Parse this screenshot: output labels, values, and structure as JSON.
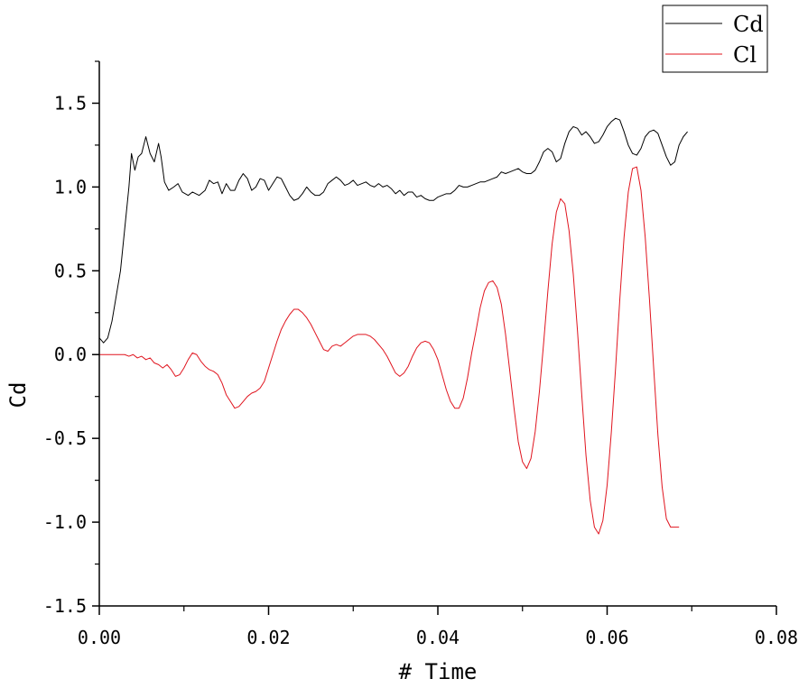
{
  "chart_data": {
    "type": "line",
    "title": "",
    "xlabel": "# Time",
    "ylabel": "Cd",
    "xlim": [
      0.0,
      0.08
    ],
    "ylim": [
      -1.5,
      1.75
    ],
    "xticks": [
      0.0,
      0.02,
      0.04,
      0.06,
      0.08
    ],
    "xtick_labels": [
      "0.00",
      "0.02",
      "0.04",
      "0.06",
      "0.08"
    ],
    "yticks": [
      -1.5,
      -1.0,
      -0.5,
      0.0,
      0.5,
      1.0,
      1.5
    ],
    "ytick_labels": [
      "-1.5",
      "-1.0",
      "-0.5",
      "0.0",
      "0.5",
      "1.0",
      "1.5"
    ],
    "grid": false,
    "legend_position": "top-right",
    "series": [
      {
        "name": "Cd",
        "color": "#000000",
        "points": [
          [
            0.0,
            0.1
          ],
          [
            0.0005,
            0.07
          ],
          [
            0.001,
            0.1
          ],
          [
            0.0015,
            0.2
          ],
          [
            0.002,
            0.35
          ],
          [
            0.0025,
            0.5
          ],
          [
            0.003,
            0.75
          ],
          [
            0.0035,
            1.0
          ],
          [
            0.0038,
            1.2
          ],
          [
            0.0042,
            1.1
          ],
          [
            0.0046,
            1.18
          ],
          [
            0.005,
            1.2
          ],
          [
            0.0055,
            1.3
          ],
          [
            0.006,
            1.2
          ],
          [
            0.0065,
            1.15
          ],
          [
            0.007,
            1.26
          ],
          [
            0.0073,
            1.18
          ],
          [
            0.0077,
            1.03
          ],
          [
            0.0082,
            0.98
          ],
          [
            0.0088,
            1.0
          ],
          [
            0.0093,
            1.02
          ],
          [
            0.0098,
            0.97
          ],
          [
            0.0105,
            0.95
          ],
          [
            0.011,
            0.97
          ],
          [
            0.0118,
            0.95
          ],
          [
            0.0125,
            0.98
          ],
          [
            0.013,
            1.04
          ],
          [
            0.0135,
            1.02
          ],
          [
            0.014,
            1.03
          ],
          [
            0.0145,
            0.96
          ],
          [
            0.015,
            1.02
          ],
          [
            0.0155,
            0.98
          ],
          [
            0.016,
            0.98
          ],
          [
            0.0165,
            1.04
          ],
          [
            0.017,
            1.08
          ],
          [
            0.0175,
            1.05
          ],
          [
            0.018,
            0.98
          ],
          [
            0.0185,
            1.0
          ],
          [
            0.019,
            1.05
          ],
          [
            0.0195,
            1.04
          ],
          [
            0.02,
            0.98
          ],
          [
            0.0205,
            1.02
          ],
          [
            0.021,
            1.06
          ],
          [
            0.0215,
            1.05
          ],
          [
            0.022,
            1.0
          ],
          [
            0.0225,
            0.95
          ],
          [
            0.023,
            0.92
          ],
          [
            0.0235,
            0.93
          ],
          [
            0.024,
            0.96
          ],
          [
            0.0245,
            1.0
          ],
          [
            0.025,
            0.97
          ],
          [
            0.0255,
            0.95
          ],
          [
            0.026,
            0.95
          ],
          [
            0.0265,
            0.97
          ],
          [
            0.027,
            1.02
          ],
          [
            0.0275,
            1.04
          ],
          [
            0.028,
            1.06
          ],
          [
            0.0285,
            1.04
          ],
          [
            0.029,
            1.01
          ],
          [
            0.0295,
            1.02
          ],
          [
            0.03,
            1.04
          ],
          [
            0.0305,
            1.01
          ],
          [
            0.031,
            1.02
          ],
          [
            0.0315,
            1.03
          ],
          [
            0.032,
            1.01
          ],
          [
            0.0325,
            1.0
          ],
          [
            0.033,
            1.02
          ],
          [
            0.0335,
            1.0
          ],
          [
            0.034,
            1.01
          ],
          [
            0.0345,
            0.99
          ],
          [
            0.035,
            0.96
          ],
          [
            0.0355,
            0.98
          ],
          [
            0.036,
            0.95
          ],
          [
            0.0365,
            0.97
          ],
          [
            0.037,
            0.97
          ],
          [
            0.0375,
            0.94
          ],
          [
            0.038,
            0.95
          ],
          [
            0.0385,
            0.93
          ],
          [
            0.039,
            0.92
          ],
          [
            0.0395,
            0.92
          ],
          [
            0.04,
            0.94
          ],
          [
            0.0405,
            0.95
          ],
          [
            0.041,
            0.96
          ],
          [
            0.0415,
            0.96
          ],
          [
            0.042,
            0.98
          ],
          [
            0.0425,
            1.01
          ],
          [
            0.043,
            1.0
          ],
          [
            0.0435,
            1.0
          ],
          [
            0.044,
            1.01
          ],
          [
            0.045,
            1.03
          ],
          [
            0.0455,
            1.03
          ],
          [
            0.046,
            1.04
          ],
          [
            0.0465,
            1.05
          ],
          [
            0.047,
            1.06
          ],
          [
            0.0475,
            1.09
          ],
          [
            0.048,
            1.08
          ],
          [
            0.0485,
            1.09
          ],
          [
            0.049,
            1.1
          ],
          [
            0.0495,
            1.11
          ],
          [
            0.05,
            1.09
          ],
          [
            0.0505,
            1.08
          ],
          [
            0.051,
            1.08
          ],
          [
            0.0515,
            1.1
          ],
          [
            0.052,
            1.15
          ],
          [
            0.0525,
            1.21
          ],
          [
            0.053,
            1.23
          ],
          [
            0.0535,
            1.21
          ],
          [
            0.054,
            1.15
          ],
          [
            0.0545,
            1.17
          ],
          [
            0.055,
            1.26
          ],
          [
            0.0555,
            1.33
          ],
          [
            0.056,
            1.36
          ],
          [
            0.0565,
            1.35
          ],
          [
            0.057,
            1.31
          ],
          [
            0.0575,
            1.33
          ],
          [
            0.058,
            1.3
          ],
          [
            0.0585,
            1.26
          ],
          [
            0.059,
            1.27
          ],
          [
            0.0595,
            1.31
          ],
          [
            0.06,
            1.36
          ],
          [
            0.0605,
            1.39
          ],
          [
            0.061,
            1.41
          ],
          [
            0.0615,
            1.4
          ],
          [
            0.062,
            1.33
          ],
          [
            0.0625,
            1.25
          ],
          [
            0.063,
            1.2
          ],
          [
            0.0635,
            1.19
          ],
          [
            0.064,
            1.23
          ],
          [
            0.0645,
            1.3
          ],
          [
            0.065,
            1.33
          ],
          [
            0.0655,
            1.34
          ],
          [
            0.066,
            1.32
          ],
          [
            0.0665,
            1.25
          ],
          [
            0.067,
            1.18
          ],
          [
            0.0675,
            1.13
          ],
          [
            0.068,
            1.15
          ],
          [
            0.0685,
            1.25
          ],
          [
            0.069,
            1.3
          ],
          [
            0.0695,
            1.33
          ]
        ]
      },
      {
        "name": "Cl",
        "color": "#e0141e",
        "points": [
          [
            0.0,
            0.0
          ],
          [
            0.001,
            0.0
          ],
          [
            0.002,
            0.0
          ],
          [
            0.003,
            0.0
          ],
          [
            0.0035,
            -0.01
          ],
          [
            0.004,
            0.0
          ],
          [
            0.0045,
            -0.02
          ],
          [
            0.005,
            -0.01
          ],
          [
            0.0055,
            -0.03
          ],
          [
            0.006,
            -0.02
          ],
          [
            0.0065,
            -0.05
          ],
          [
            0.007,
            -0.06
          ],
          [
            0.0075,
            -0.08
          ],
          [
            0.008,
            -0.06
          ],
          [
            0.0085,
            -0.09
          ],
          [
            0.009,
            -0.13
          ],
          [
            0.0095,
            -0.12
          ],
          [
            0.01,
            -0.08
          ],
          [
            0.0105,
            -0.03
          ],
          [
            0.011,
            0.01
          ],
          [
            0.0115,
            0.0
          ],
          [
            0.012,
            -0.04
          ],
          [
            0.0125,
            -0.07
          ],
          [
            0.013,
            -0.09
          ],
          [
            0.0135,
            -0.1
          ],
          [
            0.014,
            -0.12
          ],
          [
            0.0145,
            -0.17
          ],
          [
            0.015,
            -0.24
          ],
          [
            0.0155,
            -0.28
          ],
          [
            0.016,
            -0.32
          ],
          [
            0.0165,
            -0.31
          ],
          [
            0.017,
            -0.28
          ],
          [
            0.0175,
            -0.25
          ],
          [
            0.018,
            -0.23
          ],
          [
            0.0185,
            -0.22
          ],
          [
            0.019,
            -0.2
          ],
          [
            0.0195,
            -0.16
          ],
          [
            0.02,
            -0.08
          ],
          [
            0.0205,
            0.0
          ],
          [
            0.021,
            0.08
          ],
          [
            0.0215,
            0.15
          ],
          [
            0.022,
            0.2
          ],
          [
            0.0225,
            0.24
          ],
          [
            0.023,
            0.27
          ],
          [
            0.0235,
            0.27
          ],
          [
            0.024,
            0.25
          ],
          [
            0.0245,
            0.22
          ],
          [
            0.025,
            0.18
          ],
          [
            0.0255,
            0.13
          ],
          [
            0.026,
            0.08
          ],
          [
            0.0265,
            0.03
          ],
          [
            0.027,
            0.02
          ],
          [
            0.0275,
            0.05
          ],
          [
            0.028,
            0.06
          ],
          [
            0.0285,
            0.05
          ],
          [
            0.029,
            0.07
          ],
          [
            0.0295,
            0.09
          ],
          [
            0.03,
            0.11
          ],
          [
            0.0305,
            0.12
          ],
          [
            0.031,
            0.12
          ],
          [
            0.0315,
            0.12
          ],
          [
            0.032,
            0.11
          ],
          [
            0.0325,
            0.09
          ],
          [
            0.033,
            0.06
          ],
          [
            0.0335,
            0.03
          ],
          [
            0.034,
            -0.01
          ],
          [
            0.0345,
            -0.06
          ],
          [
            0.035,
            -0.11
          ],
          [
            0.0355,
            -0.13
          ],
          [
            0.036,
            -0.11
          ],
          [
            0.0365,
            -0.07
          ],
          [
            0.037,
            -0.01
          ],
          [
            0.0375,
            0.04
          ],
          [
            0.038,
            0.07
          ],
          [
            0.0385,
            0.08
          ],
          [
            0.039,
            0.07
          ],
          [
            0.0395,
            0.03
          ],
          [
            0.04,
            -0.03
          ],
          [
            0.0405,
            -0.12
          ],
          [
            0.041,
            -0.21
          ],
          [
            0.0415,
            -0.28
          ],
          [
            0.042,
            -0.32
          ],
          [
            0.0425,
            -0.32
          ],
          [
            0.043,
            -0.26
          ],
          [
            0.0435,
            -0.14
          ],
          [
            0.044,
            0.01
          ],
          [
            0.0445,
            0.14
          ],
          [
            0.045,
            0.28
          ],
          [
            0.0455,
            0.38
          ],
          [
            0.046,
            0.43
          ],
          [
            0.0465,
            0.44
          ],
          [
            0.047,
            0.4
          ],
          [
            0.0475,
            0.3
          ],
          [
            0.048,
            0.12
          ],
          [
            0.0485,
            -0.1
          ],
          [
            0.049,
            -0.32
          ],
          [
            0.0495,
            -0.52
          ],
          [
            0.05,
            -0.64
          ],
          [
            0.0505,
            -0.68
          ],
          [
            0.051,
            -0.62
          ],
          [
            0.0515,
            -0.46
          ],
          [
            0.052,
            -0.22
          ],
          [
            0.0525,
            0.07
          ],
          [
            0.053,
            0.38
          ],
          [
            0.0535,
            0.66
          ],
          [
            0.054,
            0.85
          ],
          [
            0.0545,
            0.93
          ],
          [
            0.055,
            0.9
          ],
          [
            0.0555,
            0.74
          ],
          [
            0.056,
            0.48
          ],
          [
            0.0565,
            0.14
          ],
          [
            0.057,
            -0.24
          ],
          [
            0.0575,
            -0.6
          ],
          [
            0.058,
            -0.87
          ],
          [
            0.0585,
            -1.03
          ],
          [
            0.059,
            -1.07
          ],
          [
            0.0595,
            -0.99
          ],
          [
            0.06,
            -0.78
          ],
          [
            0.0605,
            -0.46
          ],
          [
            0.061,
            -0.08
          ],
          [
            0.0615,
            0.33
          ],
          [
            0.062,
            0.7
          ],
          [
            0.0625,
            0.97
          ],
          [
            0.063,
            1.11
          ],
          [
            0.0635,
            1.12
          ],
          [
            0.064,
            0.98
          ],
          [
            0.0645,
            0.7
          ],
          [
            0.065,
            0.33
          ],
          [
            0.0655,
            -0.08
          ],
          [
            0.066,
            -0.48
          ],
          [
            0.0665,
            -0.79
          ],
          [
            0.067,
            -0.98
          ],
          [
            0.0675,
            -1.03
          ],
          [
            0.0685,
            -1.03
          ]
        ]
      }
    ]
  }
}
